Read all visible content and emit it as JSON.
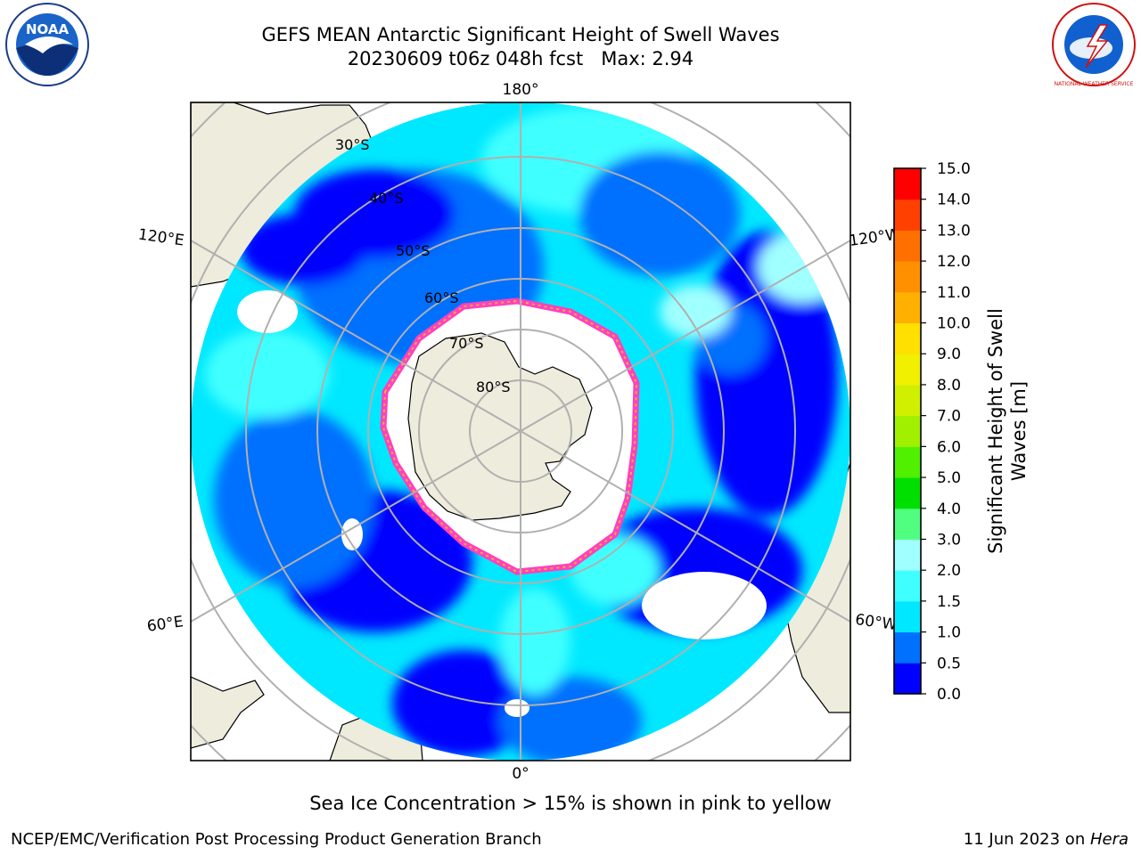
{
  "header": {
    "title_line1": "GEFS MEAN Antarctic Significant Height of Swell Waves",
    "title_line2": "20230609 t06z 048h fcst   Max: 2.94"
  },
  "logos": {
    "noaa_text": "NOAA",
    "nws_text": "NATIONAL WEATHER SERVICE"
  },
  "map": {
    "longitude_labels": {
      "top": "180°",
      "bottom": "0°",
      "upper_left": "120°E",
      "upper_right": "120°W",
      "lower_left": "60°E",
      "lower_right": "60°W"
    },
    "latitude_labels": [
      "30°S",
      "40°S",
      "50°S",
      "60°S",
      "70°S",
      "80°S"
    ],
    "colors": {
      "land": "#eeecdc",
      "grid": "#b0b0b0",
      "ice_pink": "#ff40c0",
      "ice_orange": "#ffb030"
    }
  },
  "colorbar": {
    "label_line1": "Significant Height of Swell",
    "label_line2": "Waves [m]",
    "ticks": [
      "0.0",
      "0.5",
      "1.0",
      "1.5",
      "2.0",
      "3.0",
      "4.0",
      "5.0",
      "6.0",
      "7.0",
      "8.0",
      "9.0",
      "10.0",
      "11.0",
      "12.0",
      "13.0",
      "14.0",
      "15.0"
    ],
    "colors": [
      "#0000ff",
      "#0070ff",
      "#00e8ff",
      "#40ffff",
      "#a0ffff",
      "#50ff80",
      "#00e000",
      "#50f000",
      "#a0f000",
      "#d0f000",
      "#f0f000",
      "#ffe000",
      "#ffb000",
      "#ff9000",
      "#ff7000",
      "#ff4000",
      "#ff0000"
    ]
  },
  "caption": "Sea Ice Concentration > 15% is shown in pink to yellow",
  "footer": {
    "left": "NCEP/EMC/Verification Post Processing Product Generation Branch",
    "right_prefix": "11 Jun 2023 on ",
    "right_italic": "Hera"
  }
}
